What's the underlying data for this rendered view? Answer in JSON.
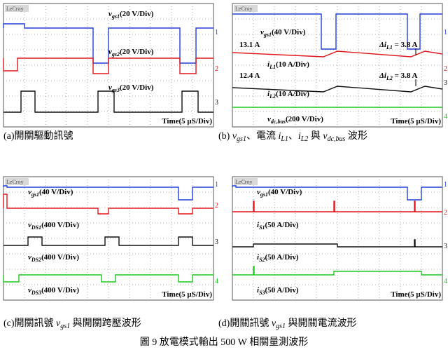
{
  "figure_title": "圖 9 放電模式輸出 500 W 相關量測波形",
  "panels": [
    {
      "brand": "LeCroy",
      "labels": [
        [
          "v",
          "gs1",
          "(20 V/Div)"
        ],
        [
          "v",
          "gs2",
          "(20 V/Div)"
        ],
        [
          "v",
          "gs3",
          "(20 V/Div)"
        ]
      ],
      "channels": [
        "1",
        "2",
        "3"
      ],
      "time": "Time(5 μS/Div)",
      "caption": [
        "(a)開關驅動訊號"
      ]
    },
    {
      "brand": "LeCroy",
      "labels": [
        [
          "v",
          "gs1",
          "(40 V/Div)"
        ],
        [
          "i",
          "L1",
          "(10 A/Div)"
        ],
        [
          "i",
          "L2",
          "(10 A/Div)"
        ],
        [
          "v",
          "dc,bus",
          "(200 V/Div)"
        ]
      ],
      "annotations": [
        "13.1 A",
        "12.4 A"
      ],
      "deltas": [
        [
          "Δi",
          "L1",
          " = 3.8 A"
        ],
        [
          "Δi",
          "L2",
          " = 3.8 A"
        ]
      ],
      "channels": [
        "1",
        "2",
        "3",
        "4"
      ],
      "time": "Time(5 μS/Div)",
      "caption": [
        "(b) ",
        "v",
        "gs1",
        "、電流 ",
        "i",
        "L1",
        "、",
        "i",
        "L2",
        " 與 ",
        "v",
        "dc,bus",
        " 波形"
      ]
    },
    {
      "brand": "LeCroy",
      "labels": [
        [
          "v",
          "gs1",
          "(40 V/Div)"
        ],
        [
          "v",
          "DS1",
          "(400 V/Div)"
        ],
        [
          "v",
          "DS2",
          "(400 V/Div)"
        ],
        [
          "v",
          "DS3",
          "(400 V/Div)"
        ]
      ],
      "channels": [
        "1",
        "2",
        "3",
        "4"
      ],
      "time": "Time(5 μS/Div)",
      "caption": [
        "(c)開關訊號 ",
        "v",
        "gs1",
        " 與開關跨壓波形"
      ]
    },
    {
      "brand": "LeCroy",
      "labels": [
        [
          "v",
          "gs1",
          "(40 V/Div)"
        ],
        [
          "i",
          "S1",
          "(50 A/Div)"
        ],
        [
          "i",
          "S2",
          "(50 A/Div)"
        ],
        [
          "i",
          "S3",
          "(50 A/Div)"
        ]
      ],
      "channels": [
        "1",
        "2",
        "3",
        "4"
      ],
      "time": "Time(5 μS/Div)",
      "caption": [
        "(d)開關訊號 ",
        "v",
        "gs1",
        " 與開關電流波形"
      ]
    }
  ]
}
